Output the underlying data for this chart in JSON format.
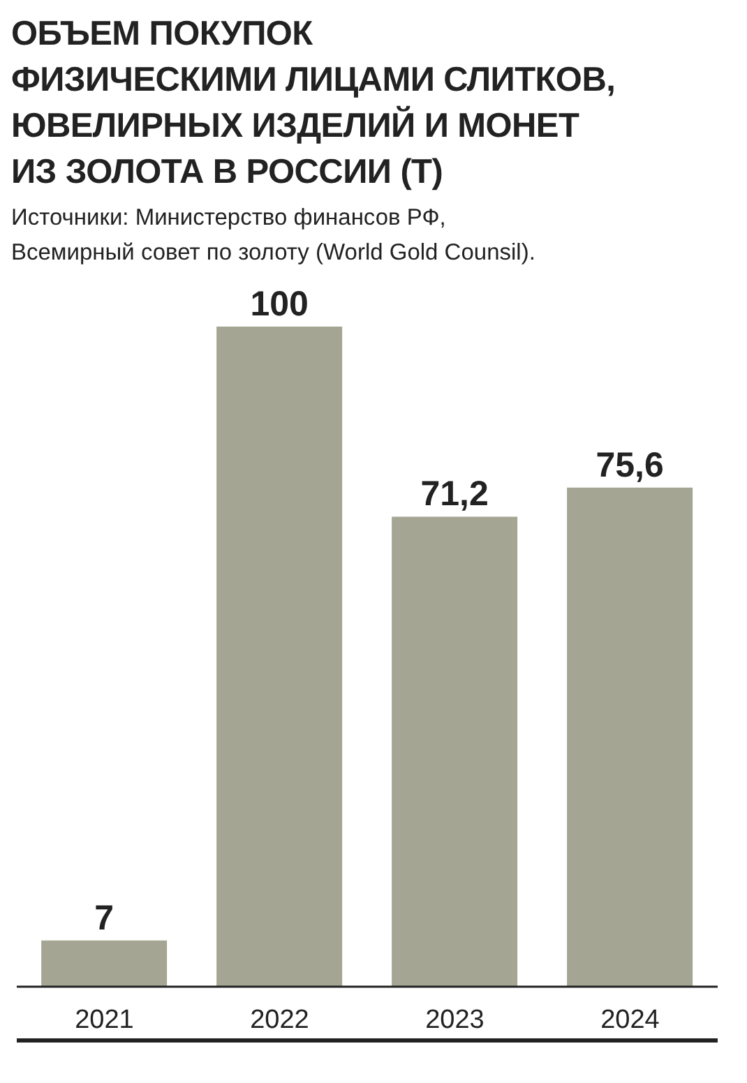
{
  "chart_data": {
    "type": "bar",
    "title": "ОБЪЕМ ПОКУПОК\nФИЗИЧЕСКИМИ ЛИЦАМИ СЛИТКОВ,\nЮВЕЛИРНЫХ ИЗДЕЛИЙ И МОНЕТ\nИЗ ЗОЛОТА В РОССИИ (Т)",
    "annotations": [
      "Источники: Министерство финансов РФ,\nВсемирный совет по золоту (World Gold Counsil)."
    ],
    "categories": [
      "2021",
      "2022",
      "2023",
      "2024"
    ],
    "values": [
      7,
      100,
      71.2,
      75.6
    ],
    "value_labels": [
      "7",
      "100",
      "71,2",
      "75,6"
    ],
    "color": "#a5a594"
  }
}
